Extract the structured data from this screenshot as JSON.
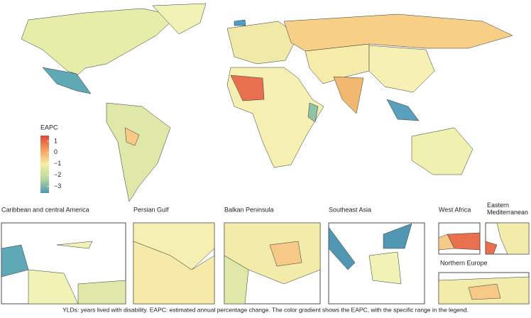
{
  "legend": {
    "title": "EAPC",
    "lim": [
      -3.6,
      1.5
    ],
    "ticks": [
      1,
      0,
      {
        "value": -1,
        "label": "−1"
      },
      {
        "value": -2,
        "label": "−2"
      },
      {
        "value": -3,
        "label": "−3"
      }
    ],
    "colors": [
      "#e0453a",
      "#f6a05a",
      "#f7eea6",
      "#b7d99a",
      "#4f97b3"
    ]
  },
  "insets": [
    {
      "title": "Caribbean and central America"
    },
    {
      "title": "Persian Gulf"
    },
    {
      "title": "Balkan Peninsula"
    },
    {
      "title": "Southeast Asia"
    },
    {
      "title": "West Africa"
    },
    {
      "title": "Eastern Mediterranean"
    },
    {
      "title": "Northern Europe"
    }
  ],
  "caption": "YLDs: years lived with disability. EAPC: estimated annual percentage change. The color gradient shows the EAPC, with the specific range in the legend."
}
